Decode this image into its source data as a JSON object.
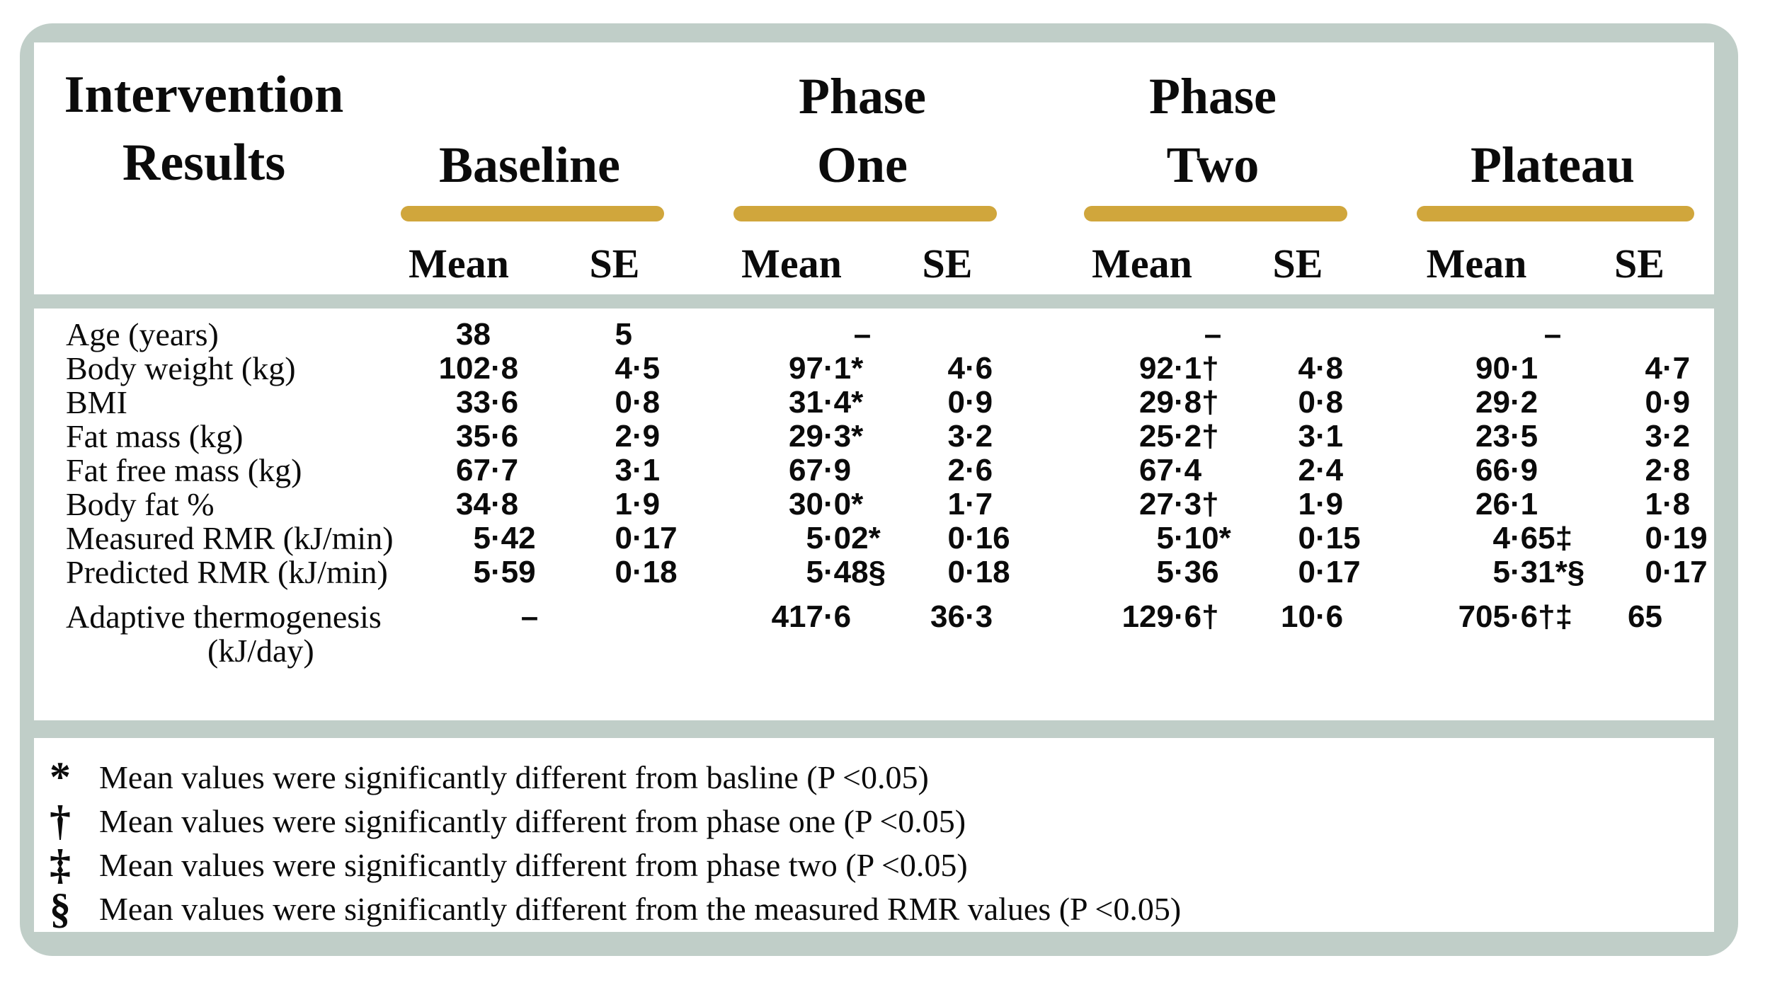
{
  "colors": {
    "frame_sage": "#c0cec8",
    "accent_gold": "#d0a63c",
    "text_black": "#0b0b0b",
    "background": "#ffffff"
  },
  "table": {
    "title": "Intervention Results",
    "title_lines": [
      "Intervention",
      "Results"
    ],
    "mean_label": "Mean",
    "se_label": "SE",
    "groups": [
      {
        "label": "Baseline",
        "line1": "",
        "line2": "Baseline"
      },
      {
        "label": "Phase One",
        "line1": "Phase",
        "line2": "One"
      },
      {
        "label": "Phase Two",
        "line1": "Phase",
        "line2": "Two"
      },
      {
        "label": "Plateau",
        "line1": "",
        "line2": "Plateau"
      }
    ],
    "missing_value_symbol": "–",
    "rows": [
      {
        "label": "Age (years)",
        "cells": [
          "38",
          "5",
          "–",
          "",
          "–",
          "",
          "–",
          ""
        ]
      },
      {
        "label": "Body weight (kg)",
        "cells": [
          "102·8",
          "4·5",
          "97·1*",
          "4·6",
          "92·1†",
          "4·8",
          "90·1",
          "4·7"
        ]
      },
      {
        "label": "BMI",
        "cells": [
          "33·6",
          "0·8",
          "31·4*",
          "0·9",
          "29·8†",
          "0·8",
          "29·2",
          "0·9"
        ]
      },
      {
        "label": "Fat mass (kg)",
        "cells": [
          "35·6",
          "2·9",
          "29·3*",
          "3·2",
          "25·2†",
          "3·1",
          "23·5",
          "3·2"
        ]
      },
      {
        "label": "Fat free mass (kg)",
        "cells": [
          "67·7",
          "3·1",
          "67·9",
          "2·6",
          "67·4",
          "2·4",
          "66·9",
          "2·8"
        ]
      },
      {
        "label": "Body fat %",
        "cells": [
          "34·8",
          "1·9",
          "30·0*",
          "1·7",
          "27·3†",
          "1·9",
          "26·1",
          "1·8"
        ]
      },
      {
        "label": "Measured RMR (kJ/min)",
        "cells": [
          "5·42",
          "0·17",
          "5·02*",
          "0·16",
          "5·10*",
          "0·15",
          "4·65‡",
          "0·19"
        ]
      },
      {
        "label": "Predicted RMR (kJ/min)",
        "cells": [
          "5·59",
          "0·18",
          "5·48§",
          "0·18",
          "5·36",
          "0·17",
          "5·31*§",
          "0·17"
        ]
      },
      {
        "label": "Adaptive thermogenesis",
        "label2": "(kJ/day)",
        "tall": true,
        "cells": [
          "–",
          "",
          "417·6",
          "36·3",
          "129·6†",
          "10·6",
          "705·6†‡",
          "65"
        ]
      }
    ]
  },
  "footnotes": [
    {
      "symbol": "*",
      "text": "Mean values were significantly different from basline (P <0.05)"
    },
    {
      "symbol": "†",
      "text": "Mean values were significantly different from phase one (P <0.05)"
    },
    {
      "symbol": "‡",
      "text": "Mean values were significantly different from phase two (P <0.05)"
    },
    {
      "symbol": "§",
      "text": "Mean values were significantly different from the measured RMR values (P <0.05)"
    }
  ]
}
